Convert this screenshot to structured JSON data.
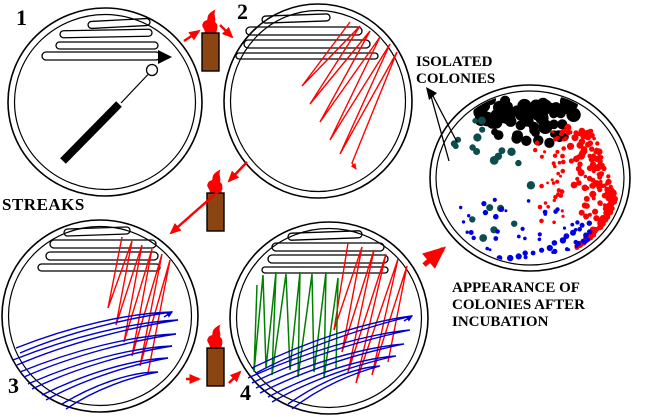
{
  "figure": {
    "type": "streak-plate-technique-diagram",
    "labels": {
      "step1": "1",
      "step2": "2",
      "step3": "3",
      "step4": "4",
      "streaks_title": "STREAKS",
      "isolated_colonies": "ISOLATED\nCOLONIES",
      "appearance_caption": "APPEARANCE OF\nCOLONIES AFTER\nINCUBATION"
    }
  },
  "icons": {
    "burner": "bunsen-burner-icon",
    "flame": "flame-icon",
    "inoculation_loop": "inoculation-loop-icon",
    "petri_dish": "petri-dish-icon",
    "step_arrow": "red-arrow-icon",
    "pointer_lines": "leader-arrow-icon"
  },
  "colors": {
    "background": "#ffffff",
    "outline_black": "#000000",
    "streak_red": "#ff0000",
    "streak_blue": "#0000cc",
    "streak_green": "#008000",
    "burner_brown": "#8b4513",
    "flame_red": "#ff0000",
    "colony_black": "#000000",
    "colony_red": "#ff0000",
    "colony_teal": "#0d4d4d",
    "colony_blue": "#0000e0"
  }
}
